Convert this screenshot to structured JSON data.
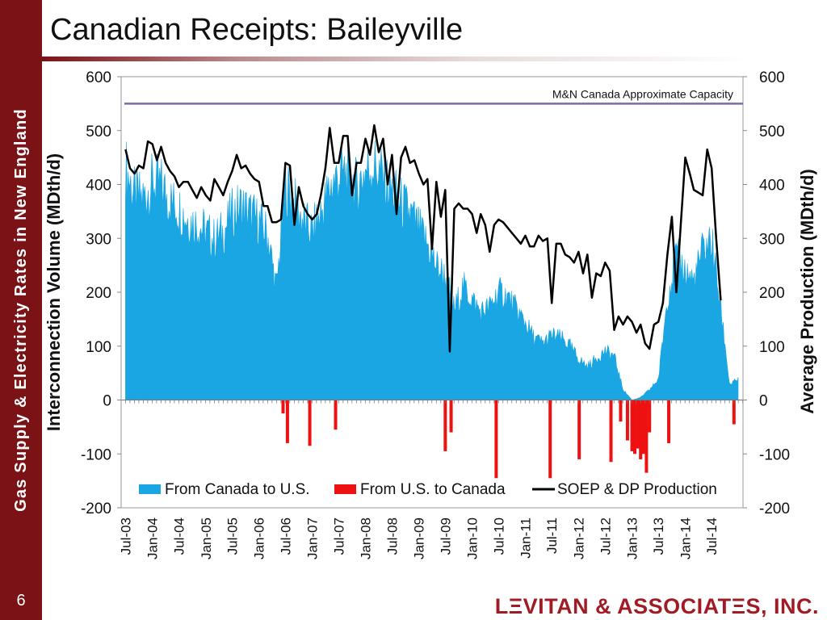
{
  "slide": {
    "title": "Canadian Receipts: Baileyville",
    "sidebar_title": "Gas Supply & Electricity Rates in New England",
    "page_number": "6",
    "logo": "LΞVITAN & ASSOCIATΞS, INC."
  },
  "colors": {
    "sidebar": "#7a1216",
    "imports": "#1aa6e3",
    "exports": "#ee1111",
    "production": "#000000",
    "capacity": "#7e6aa8",
    "logo": "#a01c24"
  },
  "chart_data": {
    "type": "area",
    "title": "",
    "ylabel": "Interconnection Volume (MDth/d)",
    "y2label": "Average Production (MDth/d)",
    "ylim": [
      -200,
      600
    ],
    "y2lim": [
      -200,
      600
    ],
    "yticks": [
      "600",
      "500",
      "400",
      "300",
      "200",
      "100",
      "0",
      "-100",
      "-200"
    ],
    "xlim": [
      "2003-06-01",
      "2015-02-01"
    ],
    "xticks": [
      {
        "date": "2003-07-01",
        "label": "Jul-03"
      },
      {
        "date": "2004-01-01",
        "label": "Jan-04"
      },
      {
        "date": "2004-07-01",
        "label": "Jul-04"
      },
      {
        "date": "2005-01-01",
        "label": "Jan-05"
      },
      {
        "date": "2005-07-01",
        "label": "Jul-05"
      },
      {
        "date": "2006-01-01",
        "label": "Jan-06"
      },
      {
        "date": "2006-07-01",
        "label": "Jul-06"
      },
      {
        "date": "2007-01-01",
        "label": "Jan-07"
      },
      {
        "date": "2007-07-01",
        "label": "Jul-07"
      },
      {
        "date": "2008-01-01",
        "label": "Jan-08"
      },
      {
        "date": "2008-07-01",
        "label": "Jul-08"
      },
      {
        "date": "2009-01-01",
        "label": "Jan-09"
      },
      {
        "date": "2009-07-01",
        "label": "Jul-09"
      },
      {
        "date": "2010-01-01",
        "label": "Jan-10"
      },
      {
        "date": "2010-07-01",
        "label": "Jul-10"
      },
      {
        "date": "2011-01-01",
        "label": "Jan-11"
      },
      {
        "date": "2011-07-01",
        "label": "Jul-11"
      },
      {
        "date": "2012-01-01",
        "label": "Jan-12"
      },
      {
        "date": "2012-07-01",
        "label": "Jul-12"
      },
      {
        "date": "2013-01-01",
        "label": "Jan-13"
      },
      {
        "date": "2013-07-01",
        "label": "Jul-13"
      },
      {
        "date": "2014-01-01",
        "label": "Jan-14"
      },
      {
        "date": "2014-07-01",
        "label": "Jul-14"
      }
    ],
    "annotation": {
      "label": "M&N Canada Approximate Capacity",
      "value": 550
    },
    "legend_position": "bottom",
    "series": [
      {
        "name": "From Canada to U.S.",
        "kind": "area",
        "points": [
          [
            "2003-07-01",
            450
          ],
          [
            "2003-09-01",
            395
          ],
          [
            "2003-11-01",
            390
          ],
          [
            "2004-01-01",
            420
          ],
          [
            "2004-03-01",
            415
          ],
          [
            "2004-05-01",
            385
          ],
          [
            "2004-07-01",
            370
          ],
          [
            "2004-09-01",
            350
          ],
          [
            "2004-11-01",
            340
          ],
          [
            "2005-01-01",
            325
          ],
          [
            "2005-03-01",
            310
          ],
          [
            "2005-05-01",
            325
          ],
          [
            "2005-07-01",
            360
          ],
          [
            "2005-09-01",
            375
          ],
          [
            "2005-11-01",
            360
          ],
          [
            "2006-01-01",
            345
          ],
          [
            "2006-03-01",
            320
          ],
          [
            "2006-05-01",
            215
          ],
          [
            "2006-07-01",
            415
          ],
          [
            "2006-09-01",
            380
          ],
          [
            "2006-11-01",
            345
          ],
          [
            "2007-01-01",
            325
          ],
          [
            "2007-03-01",
            360
          ],
          [
            "2007-05-01",
            410
          ],
          [
            "2007-07-01",
            435
          ],
          [
            "2007-09-01",
            440
          ],
          [
            "2007-11-01",
            410
          ],
          [
            "2008-01-01",
            445
          ],
          [
            "2008-03-01",
            455
          ],
          [
            "2008-05-01",
            430
          ],
          [
            "2008-07-01",
            405
          ],
          [
            "2008-09-01",
            380
          ],
          [
            "2008-11-01",
            360
          ],
          [
            "2009-01-01",
            330
          ],
          [
            "2009-03-01",
            300
          ],
          [
            "2009-05-01",
            260
          ],
          [
            "2009-07-01",
            240
          ],
          [
            "2009-09-01",
            175
          ],
          [
            "2009-11-01",
            220
          ],
          [
            "2010-01-01",
            195
          ],
          [
            "2010-03-01",
            170
          ],
          [
            "2010-05-01",
            180
          ],
          [
            "2010-07-01",
            210
          ],
          [
            "2010-09-01",
            200
          ],
          [
            "2010-11-01",
            175
          ],
          [
            "2011-01-01",
            150
          ],
          [
            "2011-03-01",
            120
          ],
          [
            "2011-05-01",
            110
          ],
          [
            "2011-07-01",
            125
          ],
          [
            "2011-09-01",
            120
          ],
          [
            "2011-11-01",
            105
          ],
          [
            "2012-01-01",
            80
          ],
          [
            "2012-03-01",
            65
          ],
          [
            "2012-05-01",
            80
          ],
          [
            "2012-07-01",
            95
          ],
          [
            "2012-09-01",
            85
          ],
          [
            "2012-11-01",
            20
          ],
          [
            "2013-01-01",
            0
          ],
          [
            "2013-03-01",
            5
          ],
          [
            "2013-05-01",
            20
          ],
          [
            "2013-07-01",
            40
          ],
          [
            "2013-09-01",
            200
          ],
          [
            "2013-11-01",
            280
          ],
          [
            "2014-01-01",
            250
          ],
          [
            "2014-03-01",
            230
          ],
          [
            "2014-05-01",
            290
          ],
          [
            "2014-07-01",
            310
          ],
          [
            "2014-09-01",
            180
          ],
          [
            "2014-11-01",
            30
          ],
          [
            "2015-01-01",
            40
          ]
        ]
      },
      {
        "name": "From U.S. to Canada",
        "kind": "bars",
        "points": [
          [
            "2006-06-15",
            -25
          ],
          [
            "2006-07-15",
            -80
          ],
          [
            "2006-12-15",
            -85
          ],
          [
            "2007-06-10",
            -55
          ],
          [
            "2009-07-01",
            -95
          ],
          [
            "2009-08-10",
            -60
          ],
          [
            "2010-06-15",
            -145
          ],
          [
            "2011-06-20",
            -145
          ],
          [
            "2012-01-05",
            -110
          ],
          [
            "2012-08-10",
            -115
          ],
          [
            "2012-10-15",
            -40
          ],
          [
            "2012-12-01",
            -75
          ],
          [
            "2013-01-01",
            -95
          ],
          [
            "2013-01-20",
            -100
          ],
          [
            "2013-02-10",
            -90
          ],
          [
            "2013-03-01",
            -110
          ],
          [
            "2013-03-20",
            -100
          ],
          [
            "2013-04-10",
            -135
          ],
          [
            "2013-05-01",
            -60
          ],
          [
            "2013-09-10",
            -80
          ],
          [
            "2014-12-01",
            -45
          ]
        ]
      },
      {
        "name": "SOEP & DP Production",
        "kind": "line",
        "points": [
          [
            "2003-07-01",
            465
          ],
          [
            "2003-08-01",
            430
          ],
          [
            "2003-09-01",
            420
          ],
          [
            "2003-10-01",
            435
          ],
          [
            "2003-11-01",
            430
          ],
          [
            "2003-12-01",
            480
          ],
          [
            "2004-01-01",
            475
          ],
          [
            "2004-02-01",
            445
          ],
          [
            "2004-03-01",
            470
          ],
          [
            "2004-04-01",
            440
          ],
          [
            "2004-05-01",
            425
          ],
          [
            "2004-06-01",
            415
          ],
          [
            "2004-07-01",
            395
          ],
          [
            "2004-08-01",
            405
          ],
          [
            "2004-09-01",
            405
          ],
          [
            "2004-10-01",
            390
          ],
          [
            "2004-11-01",
            375
          ],
          [
            "2004-12-01",
            395
          ],
          [
            "2005-01-01",
            380
          ],
          [
            "2005-02-01",
            370
          ],
          [
            "2005-03-01",
            410
          ],
          [
            "2005-04-01",
            395
          ],
          [
            "2005-05-01",
            380
          ],
          [
            "2005-06-01",
            405
          ],
          [
            "2005-07-01",
            425
          ],
          [
            "2005-08-01",
            455
          ],
          [
            "2005-09-01",
            430
          ],
          [
            "2005-10-01",
            435
          ],
          [
            "2005-11-01",
            420
          ],
          [
            "2005-12-01",
            410
          ],
          [
            "2006-01-01",
            405
          ],
          [
            "2006-02-01",
            360
          ],
          [
            "2006-03-01",
            360
          ],
          [
            "2006-04-01",
            330
          ],
          [
            "2006-05-01",
            330
          ],
          [
            "2006-06-01",
            335
          ],
          [
            "2006-07-01",
            440
          ],
          [
            "2006-08-01",
            435
          ],
          [
            "2006-09-01",
            325
          ],
          [
            "2006-10-01",
            395
          ],
          [
            "2006-11-01",
            360
          ],
          [
            "2006-12-01",
            345
          ],
          [
            "2007-01-01",
            335
          ],
          [
            "2007-02-01",
            345
          ],
          [
            "2007-03-01",
            380
          ],
          [
            "2007-04-01",
            430
          ],
          [
            "2007-05-01",
            505
          ],
          [
            "2007-06-01",
            440
          ],
          [
            "2007-07-01",
            440
          ],
          [
            "2007-08-01",
            490
          ],
          [
            "2007-09-01",
            490
          ],
          [
            "2007-10-01",
            380
          ],
          [
            "2007-11-01",
            440
          ],
          [
            "2007-12-01",
            440
          ],
          [
            "2008-01-01",
            485
          ],
          [
            "2008-02-01",
            455
          ],
          [
            "2008-03-01",
            510
          ],
          [
            "2008-04-01",
            460
          ],
          [
            "2008-05-01",
            485
          ],
          [
            "2008-06-01",
            400
          ],
          [
            "2008-07-01",
            455
          ],
          [
            "2008-08-01",
            345
          ],
          [
            "2008-09-01",
            450
          ],
          [
            "2008-10-01",
            470
          ],
          [
            "2008-11-01",
            440
          ],
          [
            "2008-12-01",
            445
          ],
          [
            "2009-01-01",
            420
          ],
          [
            "2009-02-01",
            400
          ],
          [
            "2009-03-01",
            410
          ],
          [
            "2009-04-01",
            280
          ],
          [
            "2009-05-01",
            405
          ],
          [
            "2009-06-01",
            340
          ],
          [
            "2009-07-01",
            390
          ],
          [
            "2009-08-01",
            90
          ],
          [
            "2009-09-01",
            355
          ],
          [
            "2009-10-01",
            365
          ],
          [
            "2009-11-01",
            355
          ],
          [
            "2009-12-01",
            355
          ],
          [
            "2010-01-01",
            345
          ],
          [
            "2010-02-01",
            310
          ],
          [
            "2010-03-01",
            345
          ],
          [
            "2010-04-01",
            325
          ],
          [
            "2010-05-01",
            275
          ],
          [
            "2010-06-01",
            325
          ],
          [
            "2010-07-01",
            335
          ],
          [
            "2010-08-01",
            330
          ],
          [
            "2010-09-01",
            320
          ],
          [
            "2010-10-01",
            310
          ],
          [
            "2010-11-01",
            300
          ],
          [
            "2010-12-01",
            290
          ],
          [
            "2011-01-01",
            305
          ],
          [
            "2011-02-01",
            285
          ],
          [
            "2011-03-01",
            285
          ],
          [
            "2011-04-01",
            305
          ],
          [
            "2011-05-01",
            295
          ],
          [
            "2011-06-01",
            300
          ],
          [
            "2011-07-01",
            180
          ],
          [
            "2011-08-01",
            290
          ],
          [
            "2011-09-01",
            290
          ],
          [
            "2011-10-01",
            270
          ],
          [
            "2011-11-01",
            265
          ],
          [
            "2011-12-01",
            255
          ],
          [
            "2012-01-01",
            275
          ],
          [
            "2012-02-01",
            235
          ],
          [
            "2012-03-01",
            270
          ],
          [
            "2012-04-01",
            190
          ],
          [
            "2012-05-01",
            235
          ],
          [
            "2012-06-01",
            230
          ],
          [
            "2012-07-01",
            255
          ],
          [
            "2012-08-01",
            240
          ],
          [
            "2012-09-01",
            130
          ],
          [
            "2012-10-01",
            155
          ],
          [
            "2012-11-01",
            140
          ],
          [
            "2012-12-01",
            155
          ],
          [
            "2013-01-01",
            145
          ],
          [
            "2013-02-01",
            125
          ],
          [
            "2013-03-01",
            140
          ],
          [
            "2013-04-01",
            105
          ],
          [
            "2013-05-01",
            95
          ],
          [
            "2013-06-01",
            140
          ],
          [
            "2013-07-01",
            145
          ],
          [
            "2013-08-01",
            180
          ],
          [
            "2013-09-01",
            270
          ],
          [
            "2013-10-01",
            340
          ],
          [
            "2013-11-01",
            200
          ],
          [
            "2013-12-01",
            325
          ],
          [
            "2014-01-01",
            450
          ],
          [
            "2014-02-01",
            420
          ],
          [
            "2014-03-01",
            390
          ],
          [
            "2014-04-01",
            385
          ],
          [
            "2014-05-01",
            380
          ],
          [
            "2014-06-01",
            465
          ],
          [
            "2014-07-01",
            430
          ],
          [
            "2014-08-01",
            300
          ],
          [
            "2014-09-01",
            185
          ]
        ]
      }
    ]
  }
}
